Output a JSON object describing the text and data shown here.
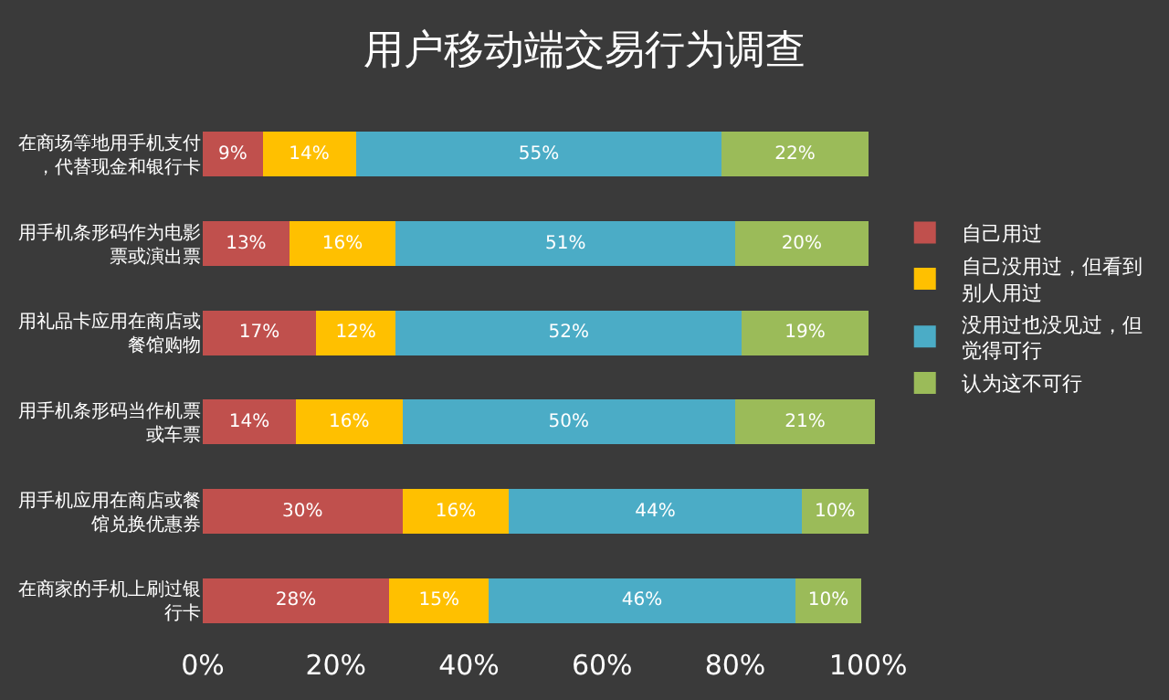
{
  "chart_data": {
    "type": "bar",
    "title": "用户移动端交易行为调查",
    "orientation": "horizontal",
    "stacked": true,
    "categories": [
      "在商场等地用手机支付，代替现金和银行卡",
      "用手机条形码作为电影票或演出票",
      "用礼品卡应用在商店或餐馆购物",
      "用手机条形码当作机票或车票",
      "用手机应用在商店或餐馆兑换优惠券",
      "在商家的手机上刷过银行卡"
    ],
    "series": [
      {
        "name": "自己用过",
        "color": "#c0504d",
        "values": [
          9,
          13,
          17,
          14,
          30,
          28
        ],
        "value_labels": [
          "9%",
          "13%",
          "17%",
          "14%",
          "30%",
          "28%"
        ]
      },
      {
        "name": "自己没用过，但看到别人用过",
        "color": "#ffc000",
        "values": [
          14,
          16,
          12,
          16,
          16,
          15
        ],
        "value_labels": [
          "14%",
          "16%",
          "12%",
          "16%",
          "16%",
          "15%"
        ]
      },
      {
        "name": "没用过也没见过，但觉得可行",
        "color": "#4bacc6",
        "values": [
          55,
          51,
          52,
          50,
          44,
          46
        ],
        "value_labels": [
          "55%",
          "51%",
          "52%",
          "50%",
          "44%",
          "46%"
        ]
      },
      {
        "name": "认为这不可行",
        "color": "#9bbb59",
        "values": [
          22,
          20,
          19,
          21,
          10,
          10
        ],
        "value_labels": [
          "22%",
          "20%",
          "19%",
          "21%",
          "10%",
          "10%"
        ]
      }
    ],
    "xlim": [
      0,
      101
    ],
    "xticks": [
      {
        "value": 0,
        "label": "0%"
      },
      {
        "value": 20,
        "label": "20%"
      },
      {
        "value": 40,
        "label": "40%"
      },
      {
        "value": 60,
        "label": "60%"
      },
      {
        "value": 80,
        "label": "80%"
      },
      {
        "value": 100,
        "label": "100%"
      }
    ],
    "grid": false,
    "legend": "right"
  }
}
